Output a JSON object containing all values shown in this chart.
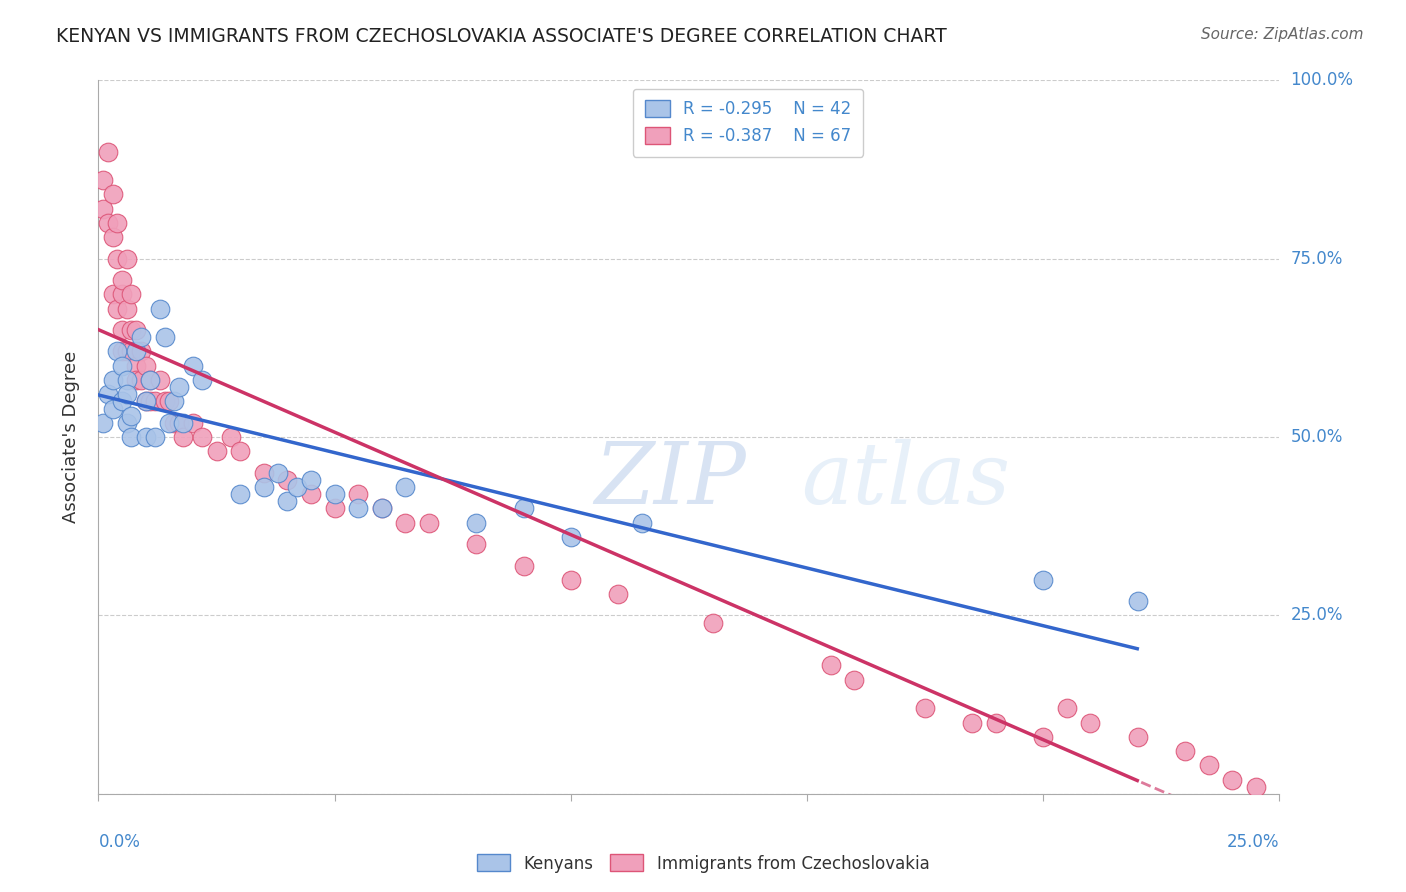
{
  "title": "KENYAN VS IMMIGRANTS FROM CZECHOSLOVAKIA ASSOCIATE'S DEGREE CORRELATION CHART",
  "source": "Source: ZipAtlas.com",
  "ylabel": "Associate's Degree",
  "legend_blue_r": "-0.295",
  "legend_blue_n": "42",
  "legend_pink_r": "-0.387",
  "legend_pink_n": "67",
  "kenyan_color_edge": "#5588cc",
  "kenyan_color_fill": "#aac4e8",
  "czech_color_edge": "#dd5577",
  "czech_color_fill": "#f0a0bb",
  "trend_blue": "#3366cc",
  "trend_pink": "#cc3366",
  "watermark": "ZIPatlas",
  "kenyan_x": [
    0.001,
    0.002,
    0.003,
    0.003,
    0.004,
    0.005,
    0.005,
    0.006,
    0.006,
    0.006,
    0.007,
    0.007,
    0.008,
    0.009,
    0.01,
    0.01,
    0.011,
    0.012,
    0.013,
    0.014,
    0.015,
    0.016,
    0.017,
    0.018,
    0.02,
    0.022,
    0.03,
    0.035,
    0.038,
    0.04,
    0.042,
    0.045,
    0.05,
    0.055,
    0.06,
    0.065,
    0.08,
    0.09,
    0.1,
    0.115,
    0.2,
    0.22
  ],
  "kenyan_y": [
    0.52,
    0.56,
    0.58,
    0.54,
    0.62,
    0.6,
    0.55,
    0.58,
    0.56,
    0.52,
    0.5,
    0.53,
    0.62,
    0.64,
    0.5,
    0.55,
    0.58,
    0.5,
    0.68,
    0.64,
    0.52,
    0.55,
    0.57,
    0.52,
    0.6,
    0.58,
    0.42,
    0.43,
    0.45,
    0.41,
    0.43,
    0.44,
    0.42,
    0.4,
    0.4,
    0.43,
    0.38,
    0.4,
    0.36,
    0.38,
    0.3,
    0.27
  ],
  "czech_x": [
    0.001,
    0.001,
    0.002,
    0.002,
    0.003,
    0.003,
    0.003,
    0.004,
    0.004,
    0.004,
    0.005,
    0.005,
    0.005,
    0.005,
    0.006,
    0.006,
    0.006,
    0.007,
    0.007,
    0.007,
    0.008,
    0.008,
    0.008,
    0.009,
    0.009,
    0.01,
    0.01,
    0.011,
    0.011,
    0.012,
    0.013,
    0.014,
    0.015,
    0.016,
    0.017,
    0.018,
    0.02,
    0.022,
    0.025,
    0.028,
    0.03,
    0.035,
    0.04,
    0.045,
    0.05,
    0.055,
    0.06,
    0.065,
    0.07,
    0.08,
    0.09,
    0.1,
    0.11,
    0.13,
    0.155,
    0.16,
    0.175,
    0.185,
    0.19,
    0.2,
    0.205,
    0.21,
    0.22,
    0.23,
    0.235,
    0.24,
    0.245
  ],
  "czech_y": [
    0.82,
    0.86,
    0.9,
    0.8,
    0.84,
    0.78,
    0.7,
    0.8,
    0.68,
    0.75,
    0.65,
    0.7,
    0.72,
    0.62,
    0.68,
    0.62,
    0.75,
    0.65,
    0.7,
    0.62,
    0.65,
    0.6,
    0.58,
    0.62,
    0.58,
    0.6,
    0.55,
    0.58,
    0.55,
    0.55,
    0.58,
    0.55,
    0.55,
    0.52,
    0.52,
    0.5,
    0.52,
    0.5,
    0.48,
    0.5,
    0.48,
    0.45,
    0.44,
    0.42,
    0.4,
    0.42,
    0.4,
    0.38,
    0.38,
    0.35,
    0.32,
    0.3,
    0.28,
    0.24,
    0.18,
    0.16,
    0.12,
    0.1,
    0.1,
    0.08,
    0.12,
    0.1,
    0.08,
    0.06,
    0.04,
    0.02,
    0.01
  ],
  "xlim": [
    0.0,
    0.25
  ],
  "ylim": [
    0.0,
    1.0
  ],
  "yticks": [
    0.0,
    0.25,
    0.5,
    0.75,
    1.0
  ],
  "xticks": [
    0.0,
    0.05,
    0.1,
    0.15,
    0.2,
    0.25
  ],
  "grid_color": "#cccccc",
  "spine_color": "#aaaaaa",
  "label_color": "#4488cc",
  "text_color": "#333333"
}
